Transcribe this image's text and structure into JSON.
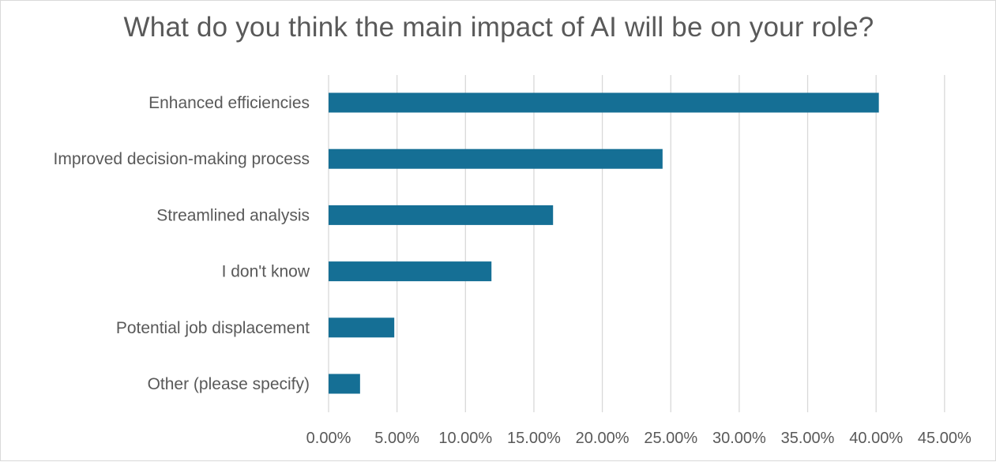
{
  "chart_data": {
    "type": "bar",
    "orientation": "horizontal",
    "title": "What do you think the main impact of AI will be on your role?",
    "categories": [
      "Enhanced efficiencies",
      "Improved decision-making process",
      "Streamlined analysis",
      "I don't know",
      "Potential job displacement",
      "Other (please specify)"
    ],
    "values": [
      40.2,
      24.4,
      16.4,
      11.9,
      4.8,
      2.3
    ],
    "xlim": [
      0,
      45
    ],
    "xticks": [
      0,
      5,
      10,
      15,
      20,
      25,
      30,
      35,
      40,
      45
    ],
    "tick_labels": [
      "0.00%",
      "5.00%",
      "10.00%",
      "15.00%",
      "20.00%",
      "25.00%",
      "30.00%",
      "35.00%",
      "40.00%",
      "45.00%"
    ],
    "xlabel": "",
    "ylabel": "",
    "grid": "vertical",
    "bar_color": "#156f95",
    "value_unit": "%"
  }
}
